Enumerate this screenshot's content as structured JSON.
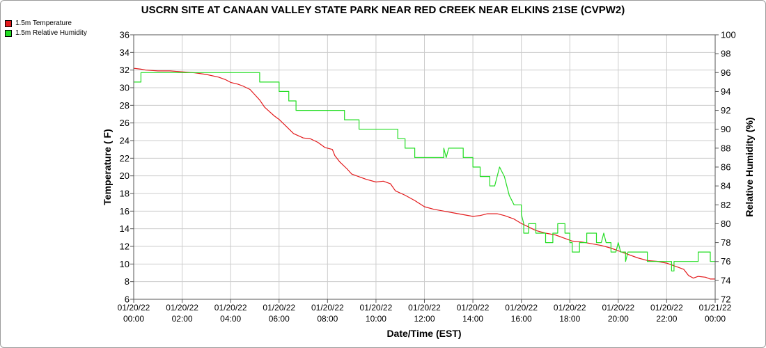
{
  "chart_data": {
    "type": "line",
    "title": "USCRN SITE AT CANAAN VALLEY STATE PARK NEAR RED CREEK NEAR ELKINS 21SE (CVPW2)",
    "xlabel": "Date/Time (EST)",
    "ylabel_left": "Temperature ( F)",
    "ylabel_right": "Relative Humidity (%)",
    "x_range_hours": [
      0,
      24
    ],
    "x_ticks": [
      {
        "date": "01/20/22",
        "time": "00:00"
      },
      {
        "date": "01/20/22",
        "time": "02:00"
      },
      {
        "date": "01/20/22",
        "time": "04:00"
      },
      {
        "date": "01/20/22",
        "time": "06:00"
      },
      {
        "date": "01/20/22",
        "time": "08:00"
      },
      {
        "date": "01/20/22",
        "time": "10:00"
      },
      {
        "date": "01/20/22",
        "time": "12:00"
      },
      {
        "date": "01/20/22",
        "time": "14:00"
      },
      {
        "date": "01/20/22",
        "time": "16:00"
      },
      {
        "date": "01/20/22",
        "time": "18:00"
      },
      {
        "date": "01/20/22",
        "time": "20:00"
      },
      {
        "date": "01/20/22",
        "time": "22:00"
      },
      {
        "date": "01/21/22",
        "time": "00:00"
      }
    ],
    "ylim_left": [
      6,
      36
    ],
    "yticks_left": [
      6,
      8,
      10,
      12,
      14,
      16,
      18,
      20,
      22,
      24,
      26,
      28,
      30,
      32,
      34,
      36
    ],
    "ylim_right": [
      72,
      100
    ],
    "yticks_right": [
      72,
      74,
      76,
      78,
      80,
      82,
      84,
      86,
      88,
      90,
      92,
      94,
      96,
      98,
      100
    ],
    "grid": true,
    "legend_position": "top-left",
    "series": [
      {
        "name": "1.5m Temperature",
        "color": "#e31a1c",
        "axis": "left",
        "points": [
          [
            0.0,
            32.2
          ],
          [
            0.3,
            32.1
          ],
          [
            0.5,
            32.0
          ],
          [
            1.0,
            31.9
          ],
          [
            1.5,
            31.9
          ],
          [
            2.0,
            31.8
          ],
          [
            2.5,
            31.7
          ],
          [
            3.0,
            31.5
          ],
          [
            3.5,
            31.2
          ],
          [
            3.8,
            30.9
          ],
          [
            4.0,
            30.6
          ],
          [
            4.3,
            30.4
          ],
          [
            4.5,
            30.2
          ],
          [
            4.8,
            29.8
          ],
          [
            5.0,
            29.2
          ],
          [
            5.2,
            28.6
          ],
          [
            5.4,
            27.8
          ],
          [
            5.6,
            27.3
          ],
          [
            5.8,
            26.8
          ],
          [
            6.0,
            26.4
          ],
          [
            6.3,
            25.6
          ],
          [
            6.6,
            24.8
          ],
          [
            7.0,
            24.3
          ],
          [
            7.3,
            24.2
          ],
          [
            7.6,
            23.8
          ],
          [
            7.9,
            23.2
          ],
          [
            8.2,
            23.0
          ],
          [
            8.3,
            22.3
          ],
          [
            8.5,
            21.6
          ],
          [
            8.8,
            20.8
          ],
          [
            9.0,
            20.2
          ],
          [
            9.3,
            19.9
          ],
          [
            9.6,
            19.6
          ],
          [
            10.0,
            19.3
          ],
          [
            10.3,
            19.4
          ],
          [
            10.6,
            19.1
          ],
          [
            10.8,
            18.3
          ],
          [
            11.2,
            17.8
          ],
          [
            11.6,
            17.2
          ],
          [
            12.0,
            16.5
          ],
          [
            12.4,
            16.2
          ],
          [
            12.8,
            16.0
          ],
          [
            13.2,
            15.8
          ],
          [
            13.6,
            15.6
          ],
          [
            14.0,
            15.4
          ],
          [
            14.3,
            15.5
          ],
          [
            14.6,
            15.7
          ],
          [
            15.0,
            15.7
          ],
          [
            15.3,
            15.5
          ],
          [
            15.7,
            15.1
          ],
          [
            16.0,
            14.6
          ],
          [
            16.3,
            14.2
          ],
          [
            16.6,
            13.8
          ],
          [
            17.0,
            13.5
          ],
          [
            17.4,
            13.3
          ],
          [
            17.8,
            12.9
          ],
          [
            18.1,
            12.6
          ],
          [
            18.5,
            12.5
          ],
          [
            18.9,
            12.3
          ],
          [
            19.3,
            12.1
          ],
          [
            19.7,
            11.8
          ],
          [
            20.0,
            11.5
          ],
          [
            20.4,
            11.1
          ],
          [
            20.8,
            10.7
          ],
          [
            21.2,
            10.4
          ],
          [
            21.6,
            10.3
          ],
          [
            22.0,
            10.1
          ],
          [
            22.4,
            9.7
          ],
          [
            22.7,
            9.4
          ],
          [
            22.9,
            8.7
          ],
          [
            23.1,
            8.4
          ],
          [
            23.3,
            8.6
          ],
          [
            23.6,
            8.5
          ],
          [
            23.8,
            8.3
          ],
          [
            24.0,
            8.3
          ]
        ]
      },
      {
        "name": "1.5m Relative Humidity",
        "color": "#22dd22",
        "axis": "right",
        "points": [
          [
            0.0,
            95
          ],
          [
            0.3,
            95
          ],
          [
            0.3,
            96
          ],
          [
            5.2,
            96
          ],
          [
            5.2,
            95
          ],
          [
            6.0,
            95
          ],
          [
            6.0,
            94
          ],
          [
            6.4,
            94
          ],
          [
            6.4,
            93
          ],
          [
            6.7,
            93
          ],
          [
            6.7,
            92
          ],
          [
            8.7,
            92
          ],
          [
            8.7,
            91
          ],
          [
            9.3,
            91
          ],
          [
            9.3,
            90
          ],
          [
            10.9,
            90
          ],
          [
            10.9,
            89
          ],
          [
            11.2,
            89
          ],
          [
            11.2,
            88
          ],
          [
            11.6,
            88
          ],
          [
            11.6,
            87
          ],
          [
            12.8,
            87
          ],
          [
            12.8,
            88
          ],
          [
            12.9,
            87
          ],
          [
            13.0,
            88
          ],
          [
            13.6,
            88
          ],
          [
            13.6,
            87
          ],
          [
            14.0,
            87
          ],
          [
            14.0,
            86
          ],
          [
            14.3,
            86
          ],
          [
            14.3,
            85
          ],
          [
            14.7,
            85
          ],
          [
            14.7,
            84
          ],
          [
            14.9,
            84
          ],
          [
            15.0,
            85
          ],
          [
            15.1,
            86
          ],
          [
            15.3,
            85
          ],
          [
            15.5,
            83
          ],
          [
            15.7,
            82
          ],
          [
            16.0,
            82
          ],
          [
            16.0,
            81
          ],
          [
            16.1,
            80
          ],
          [
            16.1,
            79
          ],
          [
            16.3,
            79
          ],
          [
            16.3,
            80
          ],
          [
            16.6,
            80
          ],
          [
            16.6,
            79
          ],
          [
            17.0,
            79
          ],
          [
            17.0,
            78
          ],
          [
            17.3,
            78
          ],
          [
            17.3,
            79
          ],
          [
            17.5,
            79
          ],
          [
            17.5,
            80
          ],
          [
            17.8,
            80
          ],
          [
            17.8,
            79
          ],
          [
            18.0,
            79
          ],
          [
            18.0,
            78
          ],
          [
            18.1,
            78
          ],
          [
            18.1,
            77
          ],
          [
            18.4,
            77
          ],
          [
            18.4,
            78
          ],
          [
            18.7,
            78
          ],
          [
            18.7,
            79
          ],
          [
            19.1,
            79
          ],
          [
            19.1,
            78
          ],
          [
            19.3,
            78
          ],
          [
            19.4,
            79
          ],
          [
            19.5,
            78
          ],
          [
            19.7,
            78
          ],
          [
            19.7,
            77
          ],
          [
            19.9,
            77
          ],
          [
            20.0,
            78
          ],
          [
            20.1,
            77
          ],
          [
            20.3,
            77
          ],
          [
            20.3,
            76
          ],
          [
            20.4,
            77
          ],
          [
            21.2,
            77
          ],
          [
            21.2,
            76
          ],
          [
            22.2,
            76
          ],
          [
            22.2,
            75
          ],
          [
            22.3,
            75
          ],
          [
            22.3,
            76
          ],
          [
            23.3,
            76
          ],
          [
            23.3,
            77
          ],
          [
            23.8,
            77
          ],
          [
            23.8,
            76
          ],
          [
            24.0,
            76
          ]
        ]
      }
    ]
  }
}
